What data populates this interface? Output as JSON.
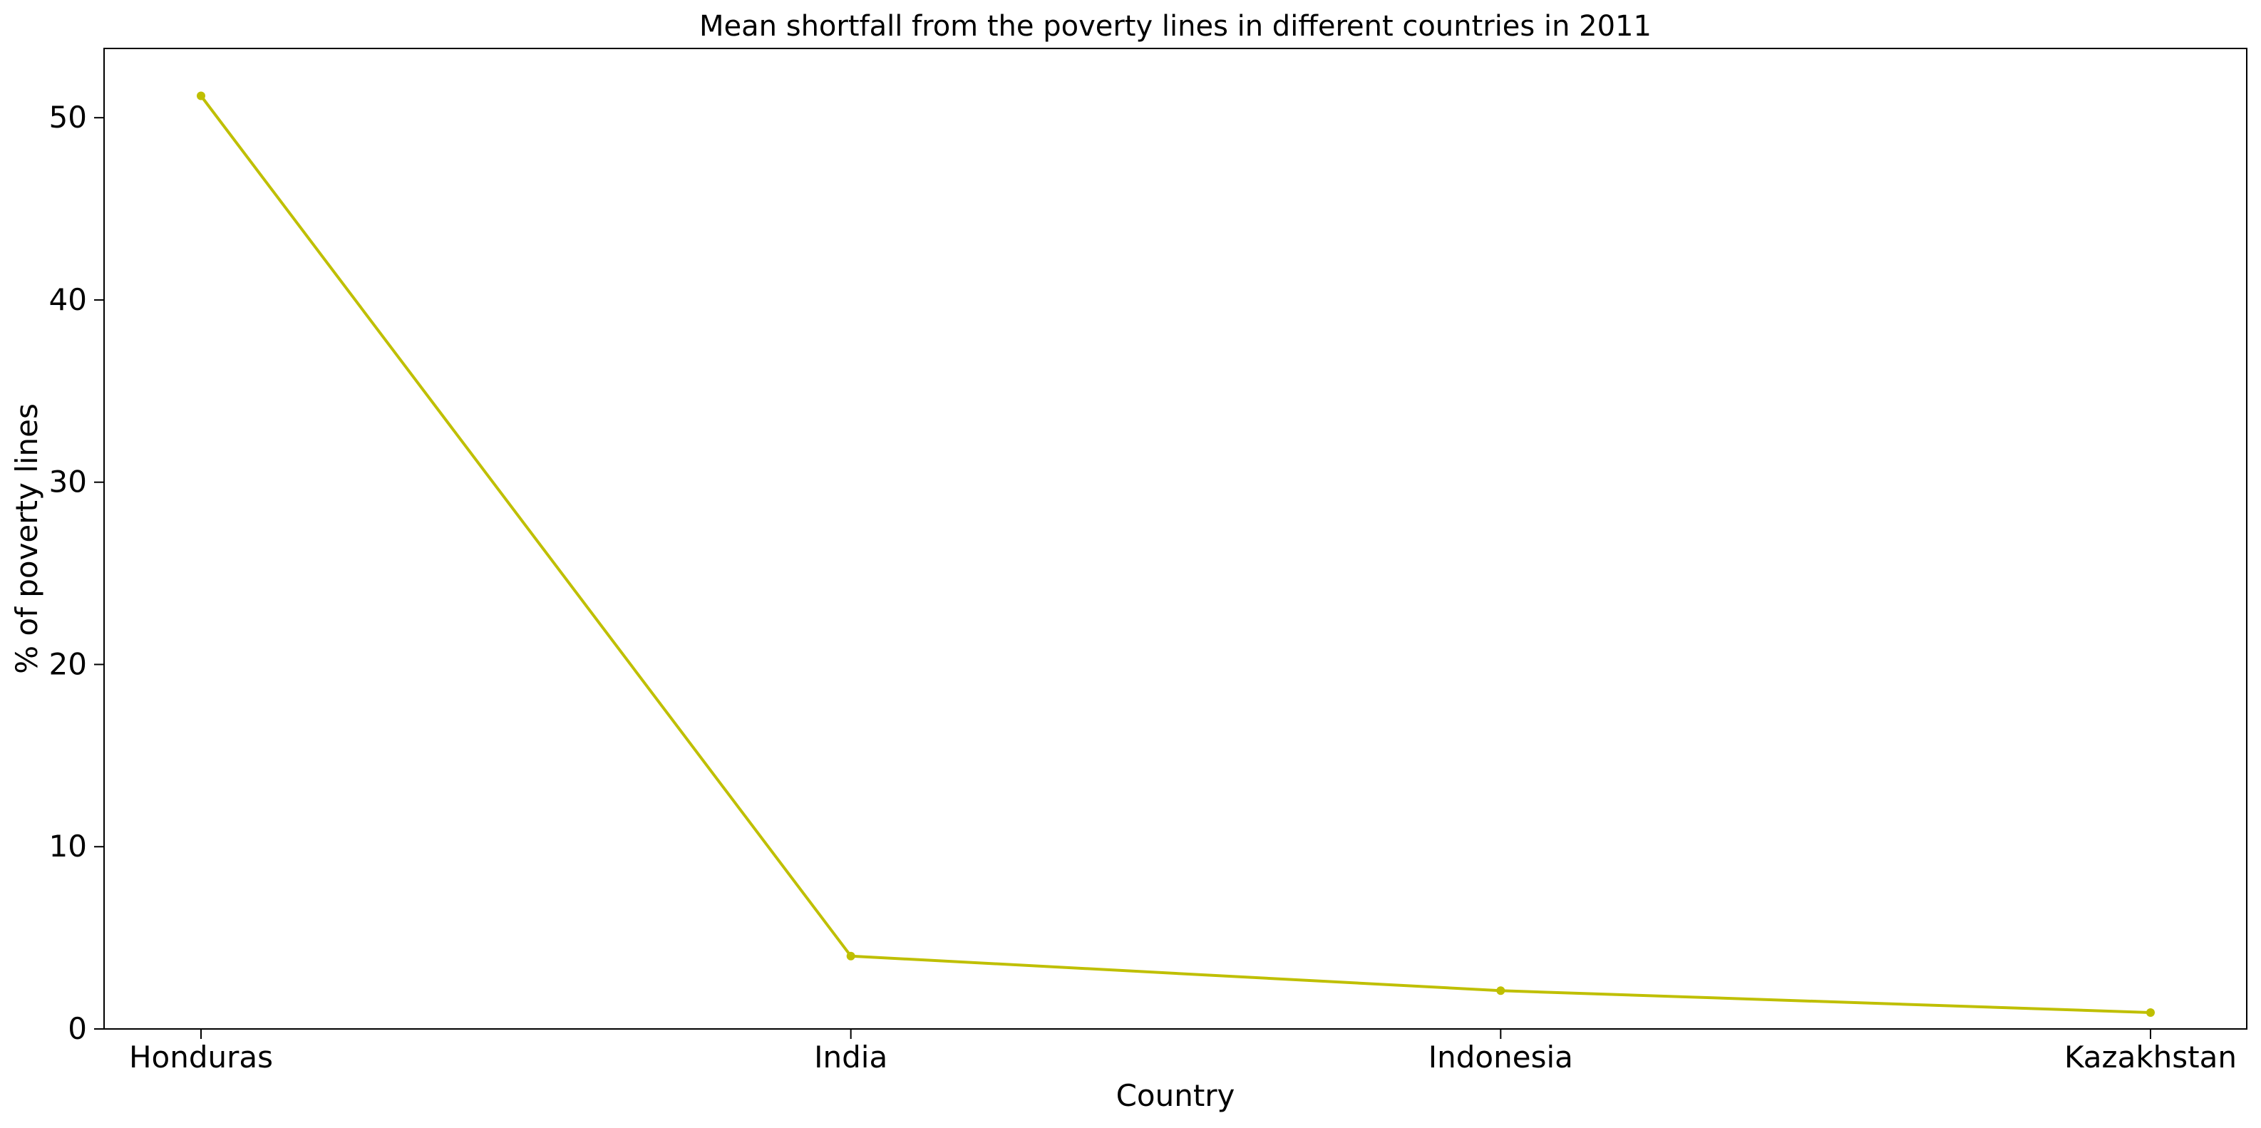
{
  "chart_data": {
    "type": "line",
    "title": "Mean shortfall from the poverty lines in different countries in 2011",
    "xlabel": "Country",
    "ylabel": "% of poverty lines",
    "categories": [
      "Honduras",
      "India",
      "Indonesia",
      "Kazakhstan"
    ],
    "series": [
      {
        "values": [
          51.2,
          4.0,
          2.1,
          0.9
        ],
        "color": "#bfbf00"
      }
    ],
    "ylim": [
      0,
      53.8
    ],
    "yticks": [
      0,
      10,
      20,
      30,
      40,
      50
    ],
    "ytick_labels": [
      "0",
      "10",
      "20",
      "30",
      "40",
      "50"
    ],
    "grid": false,
    "legend": "none"
  }
}
